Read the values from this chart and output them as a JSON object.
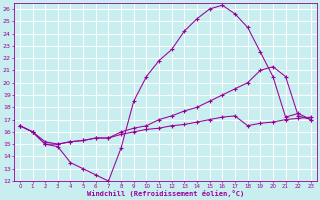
{
  "xlabel": "Windchill (Refroidissement éolien,°C)",
  "bg_color": "#c8eef0",
  "grid_color": "#ffffff",
  "line_color": "#990099",
  "xlim": [
    -0.5,
    23.5
  ],
  "ylim": [
    12,
    26.5
  ],
  "xticks": [
    0,
    1,
    2,
    3,
    4,
    5,
    6,
    7,
    8,
    9,
    10,
    11,
    12,
    13,
    14,
    15,
    16,
    17,
    18,
    19,
    20,
    21,
    22,
    23
  ],
  "yticks": [
    12,
    13,
    14,
    15,
    16,
    17,
    18,
    19,
    20,
    21,
    22,
    23,
    24,
    25,
    26
  ],
  "curve1_x": [
    0,
    1,
    2,
    3,
    4,
    5,
    6,
    7,
    8,
    9,
    10,
    11,
    12,
    13,
    14,
    15,
    16,
    17,
    18,
    19,
    20,
    21,
    22,
    23
  ],
  "curve1_y": [
    16.5,
    16.0,
    15.0,
    14.8,
    13.5,
    13.0,
    12.5,
    12.0,
    14.7,
    18.5,
    20.5,
    21.8,
    22.7,
    24.2,
    25.2,
    26.0,
    26.3,
    25.6,
    24.5,
    22.5,
    20.5,
    17.2,
    17.5,
    17.0
  ],
  "curve2_x": [
    0,
    1,
    2,
    3,
    4,
    5,
    6,
    7,
    8,
    9,
    10,
    11,
    12,
    13,
    14,
    15,
    16,
    17,
    18,
    19,
    20,
    21,
    22,
    23
  ],
  "curve2_y": [
    16.5,
    16.0,
    15.2,
    15.0,
    15.2,
    15.3,
    15.5,
    15.5,
    16.0,
    16.3,
    16.5,
    17.0,
    17.3,
    17.7,
    18.0,
    18.5,
    19.0,
    19.5,
    20.0,
    21.0,
    21.3,
    20.5,
    17.3,
    17.0
  ],
  "curve3_x": [
    0,
    1,
    2,
    3,
    4,
    5,
    6,
    7,
    8,
    9,
    10,
    11,
    12,
    13,
    14,
    15,
    16,
    17,
    18,
    19,
    20,
    21,
    22,
    23
  ],
  "curve3_y": [
    16.5,
    16.0,
    15.0,
    15.0,
    15.2,
    15.3,
    15.5,
    15.5,
    15.8,
    16.0,
    16.2,
    16.3,
    16.5,
    16.6,
    16.8,
    17.0,
    17.2,
    17.3,
    16.5,
    16.7,
    16.8,
    17.0,
    17.1,
    17.2
  ]
}
